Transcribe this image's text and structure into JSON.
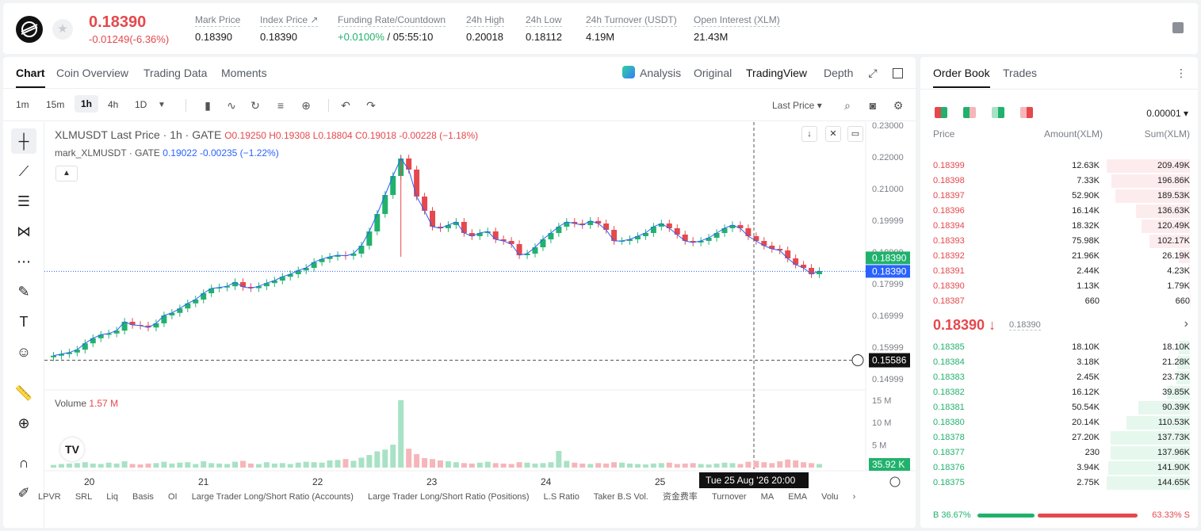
{
  "ticker": {
    "last_price": "0.18390",
    "change": "-0.01249(-6.36%)",
    "stats": [
      {
        "label": "Mark Price",
        "value": "0.18390"
      },
      {
        "label": "Index Price ↗",
        "value": "0.18390"
      },
      {
        "label": "Funding Rate/Countdown",
        "value_green": "+0.0100%",
        "value": " / 05:55:10"
      },
      {
        "label": "24h High",
        "value": "0.20018"
      },
      {
        "label": "24h Low",
        "value": "0.18112"
      },
      {
        "label": "24h Turnover (USDT)",
        "value": "4.19M"
      },
      {
        "label": "Open Interest (XLM)",
        "value": "21.43M"
      }
    ]
  },
  "chart_tabs": [
    "Chart",
    "Coin Overview",
    "Trading Data",
    "Moments"
  ],
  "view_tabs": [
    "Analysis",
    "Original",
    "TradingView",
    "Depth"
  ],
  "timeframes": [
    "1m",
    "15m",
    "1h",
    "4h",
    "1D"
  ],
  "selected_timeframe": "1h",
  "price_type": "Last Price",
  "legend": {
    "symbol": "XLMUSDT Last Price · 1h · GATE",
    "ohlc": "O0.19250 H0.19308 L0.18804 C0.19018 -0.00228 (−1.18%)",
    "mark_name": "mark_XLMUSDT · GATE",
    "mark_vals": "0.19022 -0.00235 (−1.22%)",
    "volume_label": "Volume",
    "volume_val": "1.57 M"
  },
  "chart_data": {
    "type": "candlestick",
    "symbol": "XLMUSDT",
    "interval": "1h",
    "y_axis_ticks": [
      "0.23000",
      "0.22000",
      "0.21000",
      "0.19999",
      "0.18999",
      "0.17999",
      "0.16999",
      "0.15999",
      "0.14999"
    ],
    "ylim": [
      0.147,
      0.231
    ],
    "x_axis_ticks": [
      "20",
      "21",
      "22",
      "23",
      "24",
      "25"
    ],
    "volume_ticks": [
      "15 M",
      "10 M",
      "5 M"
    ],
    "price_labels": {
      "last": "0.18390",
      "mark": "0.18390",
      "crosshair": "0.15586",
      "volume": "35.92 K"
    },
    "crosshair_time": "Tue 25 Aug '26   20:00",
    "close_path": [
      0.1573,
      0.1578,
      0.1583,
      0.1592,
      0.1612,
      0.1628,
      0.1639,
      0.1643,
      0.1652,
      0.168,
      0.167,
      0.1668,
      0.1662,
      0.1675,
      0.17,
      0.1708,
      0.1722,
      0.1738,
      0.175,
      0.177,
      0.1785,
      0.1788,
      0.1792,
      0.1805,
      0.179,
      0.1786,
      0.1792,
      0.1802,
      0.181,
      0.1822,
      0.183,
      0.1842,
      0.185,
      0.1868,
      0.1878,
      0.1885,
      0.189,
      0.1888,
      0.1895,
      0.192,
      0.1965,
      0.202,
      0.208,
      0.214,
      0.2195,
      0.216,
      0.2075,
      0.203,
      0.198,
      0.1975,
      0.1985,
      0.1995,
      0.196,
      0.195,
      0.196,
      0.1965,
      0.194,
      0.1935,
      0.1925,
      0.189,
      0.1895,
      0.1915,
      0.194,
      0.196,
      0.198,
      0.1995,
      0.199,
      0.1985,
      0.1998,
      0.199,
      0.197,
      0.1935,
      0.1935,
      0.194,
      0.195,
      0.196,
      0.198,
      0.199,
      0.1975,
      0.1955,
      0.1935,
      0.193,
      0.1935,
      0.1945,
      0.196,
      0.1975,
      0.1985,
      0.1975,
      0.195,
      0.1935,
      0.192,
      0.191,
      0.1905,
      0.188,
      0.186,
      0.185,
      0.183,
      0.184
    ],
    "volume_path": [
      0.6,
      0.8,
      0.9,
      1.0,
      1.2,
      0.9,
      0.8,
      1.1,
      0.9,
      1.4,
      0.8,
      0.7,
      0.9,
      1.0,
      1.3,
      0.9,
      1.1,
      1.2,
      0.8,
      1.4,
      1.0,
      0.9,
      0.8,
      1.3,
      1.5,
      0.9,
      0.8,
      1.2,
      0.9,
      1.0,
      0.8,
      1.1,
      1.3,
      1.2,
      1.1,
      1.6,
      1.7,
      1.9,
      1.5,
      2.2,
      2.8,
      3.6,
      4.0,
      5.1,
      15.0,
      4.2,
      3.0,
      2.1,
      1.9,
      1.6,
      1.4,
      1.2,
      1.0,
      0.9,
      1.1,
      1.3,
      1.0,
      0.9,
      0.8,
      1.2,
      1.1,
      0.9,
      1.0,
      1.2,
      3.7,
      1.5,
      1.1,
      0.9,
      0.8,
      1.0,
      0.9,
      1.2,
      1.1,
      0.9,
      0.8,
      0.7,
      0.9,
      1.0,
      1.1,
      0.8,
      0.9,
      1.0,
      0.8,
      0.7,
      0.9,
      1.1,
      1.0,
      0.8,
      1.3,
      1.5,
      1.2,
      1.0,
      1.4,
      1.8,
      1.6,
      1.2,
      1.0,
      0.8
    ]
  },
  "indicators": [
    "LPVR",
    "SRL",
    "Liq",
    "Basis",
    "OI",
    "Large Trader Long/Short Ratio (Accounts)",
    "Large Trader Long/Short Ratio (Positions)",
    "L.S Ratio",
    "Taker B.S Vol.",
    "资金费率",
    "Turnover",
    "MA",
    "EMA",
    "Volu"
  ],
  "orderbook": {
    "tabs": [
      "Order Book",
      "Trades"
    ],
    "precision": "0.00001",
    "headers": {
      "price": "Price",
      "amount": "Amount(XLM)",
      "sum": "Sum(XLM)"
    },
    "asks": [
      {
        "price": "0.18399",
        "amount": "12.63K",
        "sum": "209.49K",
        "depth": 1.0
      },
      {
        "price": "0.18398",
        "amount": "7.33K",
        "sum": "196.86K",
        "depth": 0.94
      },
      {
        "price": "0.18397",
        "amount": "52.90K",
        "sum": "189.53K",
        "depth": 0.9
      },
      {
        "price": "0.18396",
        "amount": "16.14K",
        "sum": "136.63K",
        "depth": 0.65
      },
      {
        "price": "0.18394",
        "amount": "18.32K",
        "sum": "120.49K",
        "depth": 0.58
      },
      {
        "price": "0.18393",
        "amount": "75.98K",
        "sum": "102.17K",
        "depth": 0.49
      },
      {
        "price": "0.18392",
        "amount": "21.96K",
        "sum": "26.19K",
        "depth": 0.13
      },
      {
        "price": "0.18391",
        "amount": "2.44K",
        "sum": "4.23K",
        "depth": 0.02
      },
      {
        "price": "0.18390",
        "amount": "1.13K",
        "sum": "1.79K",
        "depth": 0.01
      },
      {
        "price": "0.18387",
        "amount": "660",
        "sum": "660",
        "depth": 0.003
      }
    ],
    "mid_price": "0.18390 ↓",
    "mid_mark": "0.18390",
    "bids": [
      {
        "price": "0.18385",
        "amount": "18.10K",
        "sum": "18.10K",
        "depth": 0.13
      },
      {
        "price": "0.18384",
        "amount": "3.18K",
        "sum": "21.28K",
        "depth": 0.15
      },
      {
        "price": "0.18383",
        "amount": "2.45K",
        "sum": "23.73K",
        "depth": 0.16
      },
      {
        "price": "0.18382",
        "amount": "16.12K",
        "sum": "39.85K",
        "depth": 0.28
      },
      {
        "price": "0.18381",
        "amount": "50.54K",
        "sum": "90.39K",
        "depth": 0.62
      },
      {
        "price": "0.18380",
        "amount": "20.14K",
        "sum": "110.53K",
        "depth": 0.76
      },
      {
        "price": "0.18378",
        "amount": "27.20K",
        "sum": "137.73K",
        "depth": 0.95
      },
      {
        "price": "0.18377",
        "amount": "230",
        "sum": "137.96K",
        "depth": 0.95
      },
      {
        "price": "0.18376",
        "amount": "3.94K",
        "sum": "141.90K",
        "depth": 0.98
      },
      {
        "price": "0.18375",
        "amount": "2.75K",
        "sum": "144.65K",
        "depth": 1.0
      }
    ],
    "buy_ratio": "B 36.67%",
    "sell_ratio": "63.33% S",
    "buy_fraction": 0.3667
  },
  "colors": {
    "up": "#20b26c",
    "down": "#e5484d",
    "mark_blue": "#2962ff"
  }
}
